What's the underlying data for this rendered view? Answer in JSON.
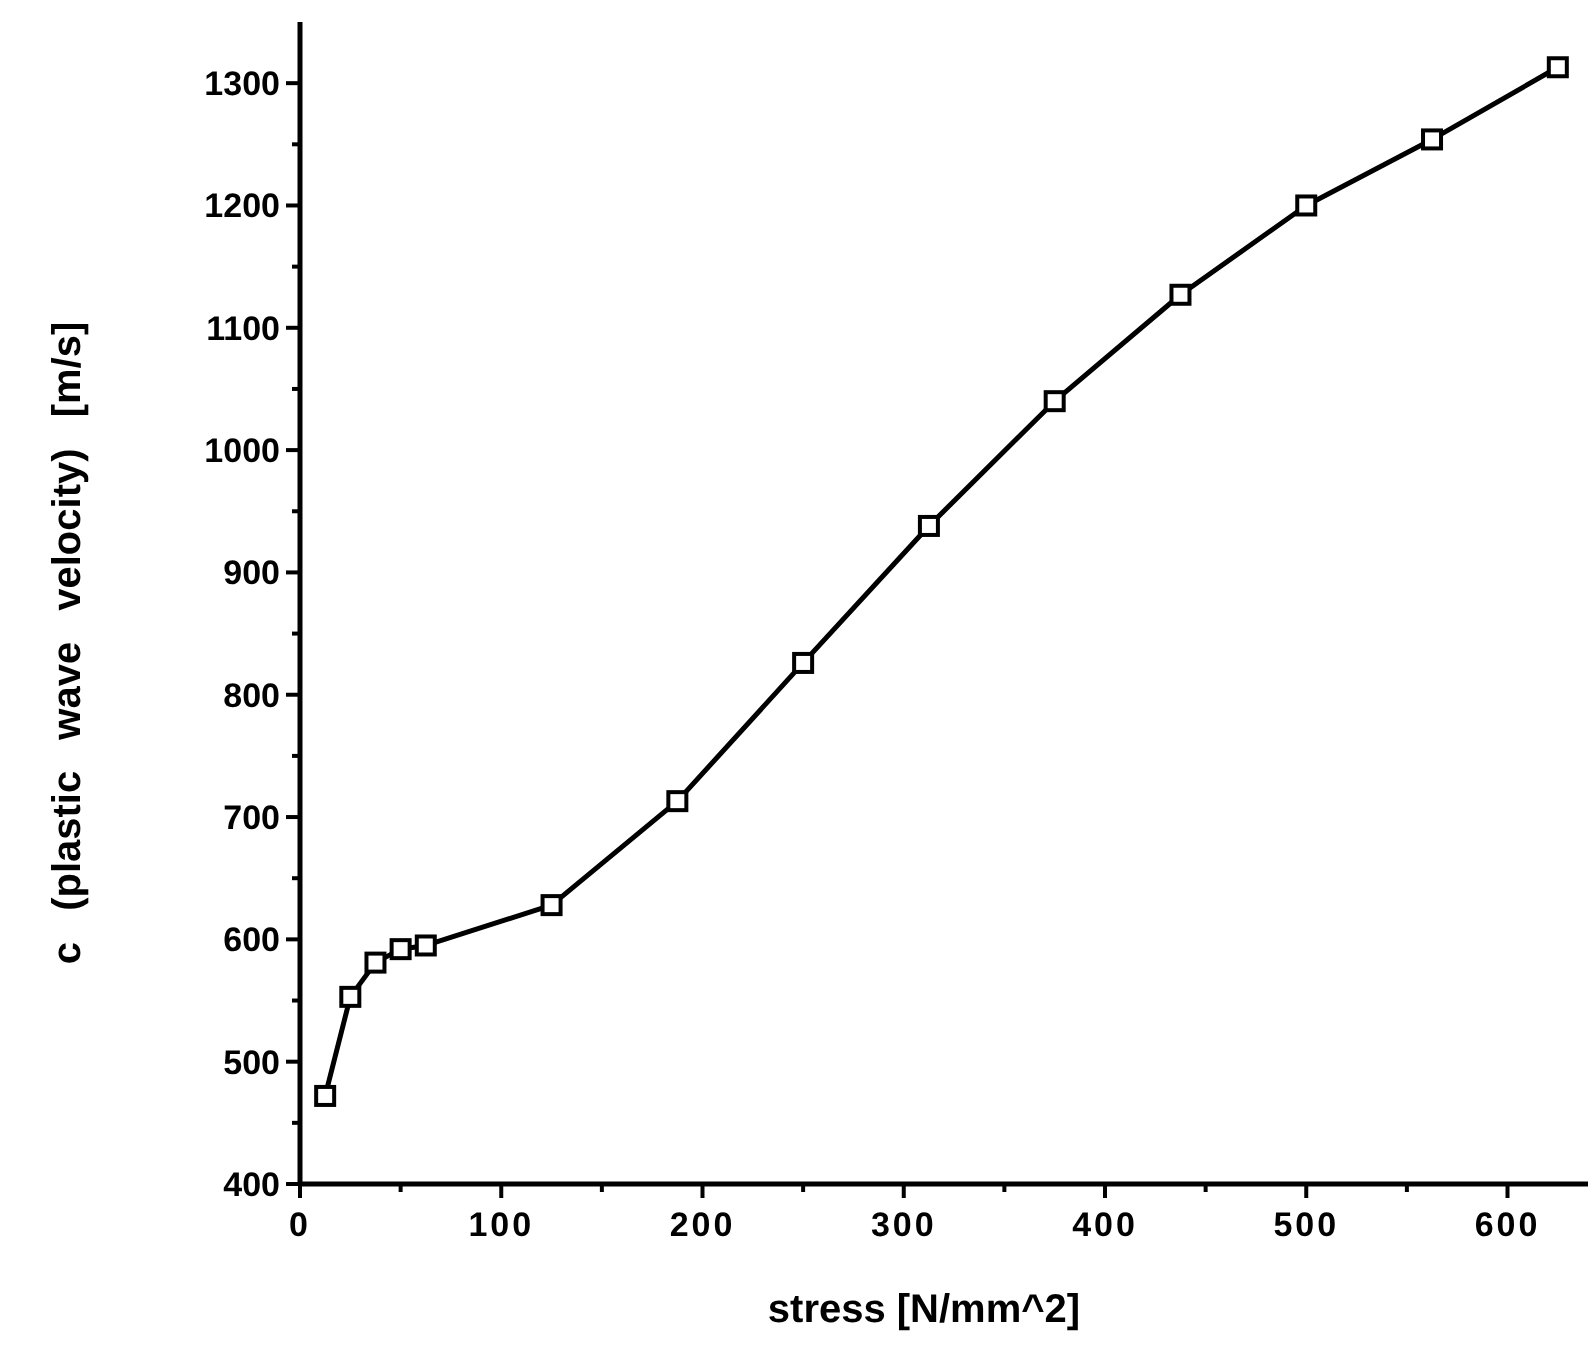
{
  "chart_data": {
    "type": "line",
    "xlabel": "stress [N/mm^2]",
    "ylabel": "c (plastic wave velocity) [m/s]",
    "x": [
      12.5,
      25,
      37.5,
      50,
      62.5,
      125,
      187.5,
      250,
      312.5,
      375,
      437.5,
      500,
      562.5,
      625
    ],
    "series": [
      {
        "color": "#000000",
        "values": [
          472,
          553,
          581,
          592,
          595,
          628,
          713,
          826,
          938,
          1040,
          1127,
          1200,
          1254,
          1313
        ]
      }
    ],
    "xlim": [
      0,
      640
    ],
    "ylim": [
      400,
      1350
    ],
    "xticks": [
      0,
      {
        "value": 50,
        "label": null
      },
      100,
      {
        "value": 150,
        "label": null
      },
      200,
      {
        "value": 250,
        "label": null
      },
      300,
      {
        "value": 350,
        "label": null
      },
      400,
      {
        "value": 450,
        "label": null
      },
      500,
      {
        "value": 550,
        "label": null
      },
      600
    ],
    "yticks": [
      400,
      {
        "value": 450,
        "label": null
      },
      500,
      {
        "value": 550,
        "label": null
      },
      600,
      {
        "value": 650,
        "label": null
      },
      700,
      {
        "value": 750,
        "label": null
      },
      800,
      {
        "value": 850,
        "label": null
      },
      900,
      {
        "value": 950,
        "label": null
      },
      1000,
      {
        "value": 1050,
        "label": null
      },
      1100,
      {
        "value": 1150,
        "label": null
      },
      1200,
      {
        "value": 1250,
        "label": null
      },
      1300
    ],
    "grid": false,
    "marker": "square",
    "line_style": "solid"
  }
}
